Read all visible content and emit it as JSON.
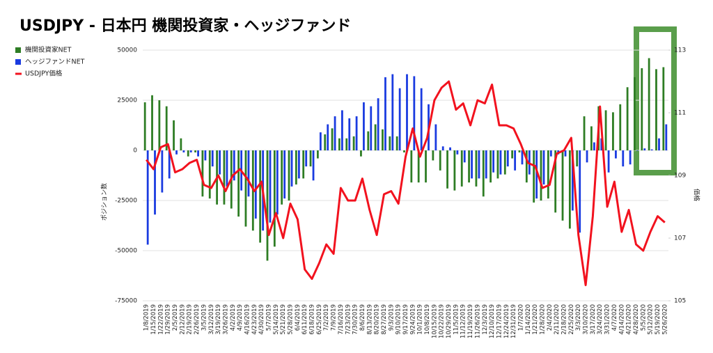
{
  "chart_data": {
    "type": "bar-line",
    "title": "USDJPY - 日本円 機関投資家・ヘッジファンド",
    "y_label": "ポジション数",
    "y2_label": "価格",
    "categories": [
      "1/8/2019",
      "1/15/2019",
      "1/22/2019",
      "1/29/2019",
      "2/5/2019",
      "2/12/2019",
      "2/19/2019",
      "2/26/2019",
      "3/5/2019",
      "3/12/2019",
      "3/19/2019",
      "3/26/2019",
      "4/2/2019",
      "4/9/2019",
      "4/16/2019",
      "4/23/2019",
      "4/30/2019",
      "5/7/2019",
      "5/14/2019",
      "5/21/2019",
      "5/28/2019",
      "6/4/2019",
      "6/11/2019",
      "6/18/2019",
      "6/25/2019",
      "7/2/2019",
      "7/9/2019",
      "7/16/2019",
      "7/23/2019",
      "7/30/2019",
      "8/6/2019",
      "8/13/2019",
      "8/20/2019",
      "8/27/2019",
      "9/3/2019",
      "9/10/2019",
      "9/17/2019",
      "9/24/2019",
      "10/1/2019",
      "10/8/2019",
      "10/15/2019",
      "10/22/2019",
      "10/29/2019",
      "11/5/2019",
      "11/12/2019",
      "11/19/2019",
      "11/26/2019",
      "12/3/2019",
      "12/10/2019",
      "12/17/2019",
      "12/24/2019",
      "12/31/2019",
      "1/7/2020",
      "1/14/2020",
      "1/21/2020",
      "1/28/2020",
      "2/4/2020",
      "2/11/2020",
      "2/18/2020",
      "2/25/2020",
      "3/3/2020",
      "3/10/2020",
      "3/17/2020",
      "3/24/2020",
      "3/31/2020",
      "4/7/2020",
      "4/14/2020",
      "4/21/2020",
      "4/28/2020",
      "5/5/2020",
      "5/12/2020",
      "5/19/2020",
      "5/26/2020"
    ],
    "series": [
      {
        "name": "機関投資家NET",
        "color": "#2e7d24",
        "values": [
          24000,
          27500,
          25000,
          22000,
          15000,
          6000,
          -3000,
          -1000,
          -23000,
          -24000,
          -27000,
          -27000,
          -29000,
          -33000,
          -38000,
          -40000,
          -46000,
          -55000,
          -48000,
          -27000,
          -25000,
          -17000,
          -14000,
          -8000,
          -4000,
          8000,
          11000,
          6000,
          6000,
          7000,
          -3000,
          9500,
          13000,
          10500,
          7000,
          7000,
          -1000,
          -16000,
          -16000,
          -16000,
          -5000,
          -10000,
          -19000,
          -20000,
          -18000,
          -16000,
          -18000,
          -23000,
          -16000,
          -14000,
          -12000,
          -4000,
          -1000,
          -16000,
          -26000,
          -25000,
          -24000,
          -31000,
          -35000,
          -39000,
          -8000,
          17000,
          12000,
          22000,
          20000,
          19000,
          23000,
          31500,
          36500,
          41000,
          46000,
          40500,
          41500
        ]
      },
      {
        "name": "ヘッジファンドNET",
        "color": "#1a3be0",
        "values": [
          -47000,
          -32000,
          -21000,
          -14000,
          -2000,
          -1000,
          -1000,
          -3000,
          -5000,
          -8000,
          -12000,
          -18000,
          -15000,
          -20000,
          -23000,
          -34000,
          -40000,
          -36000,
          -32000,
          -24000,
          -18000,
          -14000,
          -8000,
          -15000,
          9000,
          13000,
          17000,
          20000,
          16000,
          17000,
          24000,
          22000,
          26000,
          36500,
          38000,
          31000,
          38000,
          37000,
          31000,
          23000,
          13000,
          2000,
          1500,
          -2000,
          -6000,
          -14000,
          -14000,
          -14000,
          -11000,
          -12000,
          -8000,
          -10000,
          -7000,
          -12000,
          -24000,
          -17000,
          -3000,
          -2000,
          -3000,
          -30000,
          -41000,
          -6000,
          4000,
          6000,
          -11000,
          -4000,
          -8000,
          -7000,
          0,
          1000,
          500,
          6000,
          13000
        ]
      },
      {
        "name": "USDJPY価格",
        "color": "#f2121e",
        "axis": "y2",
        "values": [
          109.5,
          109.2,
          109.9,
          110.0,
          109.1,
          109.2,
          109.4,
          109.5,
          108.7,
          108.6,
          109.0,
          108.5,
          109.0,
          109.2,
          108.9,
          108.5,
          108.8,
          107.1,
          107.8,
          107.0,
          108.1,
          107.6,
          106.0,
          105.7,
          106.2,
          106.8,
          106.5,
          108.6,
          108.2,
          108.2,
          108.9,
          107.9,
          107.1,
          108.4,
          108.5,
          108.1,
          109.6,
          110.5,
          109.6,
          110.2,
          111.4,
          111.8,
          112.0,
          111.1,
          111.3,
          110.6,
          111.4,
          111.3,
          111.9,
          110.6,
          110.6,
          110.5,
          110.0,
          109.4,
          109.3,
          108.6,
          108.7,
          109.7,
          109.8,
          110.2,
          107.1,
          105.5,
          107.7,
          111.2,
          108.0,
          108.8,
          107.2,
          107.9,
          106.8,
          106.6,
          107.2,
          107.7,
          107.5
        ]
      }
    ],
    "ylim": [
      -75000,
      50000
    ],
    "yticks": [
      50000,
      25000,
      0,
      -25000,
      -50000,
      -75000
    ],
    "y2lim": [
      105,
      113
    ],
    "y2ticks": [
      113,
      111,
      109,
      107,
      105
    ],
    "grid": true
  }
}
